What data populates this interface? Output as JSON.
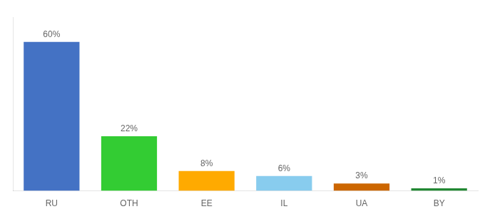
{
  "chart_data": {
    "type": "bar",
    "categories": [
      "RU",
      "OTH",
      "EE",
      "IL",
      "UA",
      "BY"
    ],
    "values": [
      60,
      22,
      8,
      6,
      3,
      1
    ],
    "value_labels": [
      "60%",
      "22%",
      "8%",
      "6%",
      "3%",
      "1%"
    ],
    "data_labels": true,
    "colors": [
      "#4472c4",
      "#33cc33",
      "#ffaa00",
      "#88ccee",
      "#cc6600",
      "#228833"
    ],
    "ylim": [
      0,
      70
    ],
    "grid": false,
    "tick_labels": "x"
  }
}
